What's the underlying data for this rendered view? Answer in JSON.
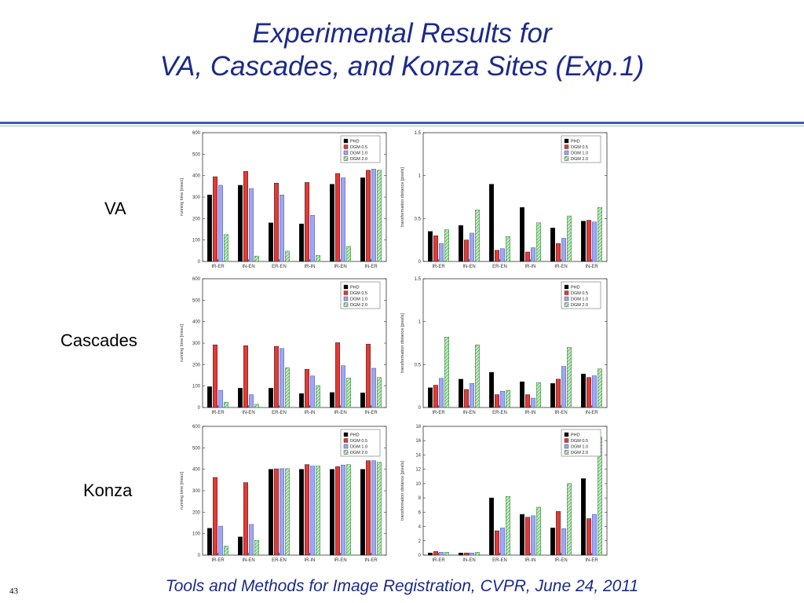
{
  "title": {
    "line1": "Experimental Results for",
    "line2": "VA, Cascades, and Konza Sites (Exp.1)"
  },
  "rows": [
    "VA",
    "Cascades",
    "Konza"
  ],
  "footer": "Tools and Methods for Image Registration, CVPR, June 24, 2011",
  "page_number": "43",
  "colors": {
    "PHD": "#000000",
    "DGM 0.5": "#e53935",
    "DGM 1.0": "#9fa8f0",
    "DGM 2.0": "#4caf50"
  },
  "chart_data": [
    {
      "row": "VA",
      "type": "bar",
      "ylabel": "running time [msec]",
      "categories": [
        "IR-ER",
        "IN-EN",
        "ER-EN",
        "IR-IN",
        "IR-EN",
        "IN-ER"
      ],
      "ylim": [
        0,
        600
      ],
      "yticks": [
        0,
        100,
        200,
        300,
        400,
        500,
        600
      ],
      "ytick_labels": [
        "0",
        "100",
        "200",
        "300",
        "400",
        "500",
        "600"
      ],
      "series": [
        {
          "name": "PHD",
          "values": [
            310,
            355,
            180,
            175,
            360,
            390
          ]
        },
        {
          "name": "DGM 0.5",
          "values": [
            395,
            420,
            365,
            368,
            410,
            425
          ]
        },
        {
          "name": "DGM 1.0",
          "values": [
            355,
            340,
            310,
            215,
            390,
            430
          ]
        },
        {
          "name": "DGM 2.0",
          "values": [
            125,
            25,
            48,
            28,
            70,
            425
          ]
        }
      ],
      "legend": "top-right"
    },
    {
      "row": "VA",
      "type": "bar",
      "ylabel": "transformation distance [pixels]",
      "categories": [
        "IR-ER",
        "IN-EN",
        "ER-EN",
        "IR-IN",
        "IR-EN",
        "IN-ER"
      ],
      "ylim": [
        0,
        1.5
      ],
      "yticks": [
        0,
        0.5,
        1,
        1.5
      ],
      "ytick_labels": [
        "0",
        "0.5",
        "1",
        "1.5"
      ],
      "series": [
        {
          "name": "PHD",
          "values": [
            0.35,
            0.42,
            0.9,
            0.63,
            0.39,
            0.47
          ]
        },
        {
          "name": "DGM 0.5",
          "values": [
            0.3,
            0.25,
            0.13,
            0.11,
            0.21,
            0.48
          ]
        },
        {
          "name": "DGM 1.0",
          "values": [
            0.21,
            0.33,
            0.15,
            0.16,
            0.27,
            0.46
          ]
        },
        {
          "name": "DGM 2.0",
          "values": [
            0.37,
            0.6,
            0.29,
            0.45,
            0.53,
            0.63
          ]
        }
      ],
      "legend": "top-right"
    },
    {
      "row": "Cascades",
      "type": "bar",
      "ylabel": "running time [msec]",
      "categories": [
        "IR-ER",
        "IN-EN",
        "ER-EN",
        "IR-IN",
        "IR-EN",
        "IN-ER"
      ],
      "ylim": [
        0,
        600
      ],
      "yticks": [
        0,
        100,
        200,
        300,
        400,
        500,
        600
      ],
      "ytick_labels": [
        "0",
        "100",
        "200",
        "300",
        "400",
        "500",
        "600"
      ],
      "series": [
        {
          "name": "PHD",
          "values": [
            97,
            90,
            90,
            65,
            70,
            68
          ]
        },
        {
          "name": "DGM 0.5",
          "values": [
            292,
            288,
            285,
            178,
            302,
            295
          ]
        },
        {
          "name": "DGM 1.0",
          "values": [
            80,
            60,
            275,
            147,
            195,
            183
          ]
        },
        {
          "name": "DGM 2.0",
          "values": [
            25,
            15,
            185,
            102,
            137,
            140
          ]
        }
      ],
      "legend": "top-right"
    },
    {
      "row": "Cascades",
      "type": "bar",
      "ylabel": "transformation distance [pixels]",
      "categories": [
        "IR-ER",
        "IN-EN",
        "ER-EN",
        "IR-IN",
        "IR-EN",
        "IN-ER"
      ],
      "ylim": [
        0,
        1.5
      ],
      "yticks": [
        0,
        0.5,
        1,
        1.5
      ],
      "ytick_labels": [
        "0",
        "0.5",
        "1",
        "1.5"
      ],
      "series": [
        {
          "name": "PHD",
          "values": [
            0.23,
            0.33,
            0.41,
            0.3,
            0.28,
            0.39
          ]
        },
        {
          "name": "DGM 0.5",
          "values": [
            0.26,
            0.21,
            0.15,
            0.15,
            0.33,
            0.35
          ]
        },
        {
          "name": "DGM 1.0",
          "values": [
            0.34,
            0.28,
            0.19,
            0.11,
            0.48,
            0.37
          ]
        },
        {
          "name": "DGM 2.0",
          "values": [
            0.82,
            0.73,
            0.2,
            0.29,
            0.7,
            0.45
          ]
        }
      ],
      "legend": "top-right"
    },
    {
      "row": "Konza",
      "type": "bar",
      "ylabel": "running time [msec]",
      "categories": [
        "IR-ER",
        "IN-EN",
        "ER-EN",
        "IR-IN",
        "IR-EN",
        "IN-ER"
      ],
      "ylim": [
        0,
        600
      ],
      "yticks": [
        0,
        100,
        200,
        300,
        400,
        500,
        600
      ],
      "ytick_labels": [
        "0",
        "100",
        "200",
        "300",
        "400",
        "500",
        "600"
      ],
      "series": [
        {
          "name": "PHD",
          "values": [
            125,
            85,
            400,
            400,
            400,
            400
          ]
        },
        {
          "name": "DGM 0.5",
          "values": [
            362,
            338,
            402,
            422,
            412,
            440
          ]
        },
        {
          "name": "DGM 1.0",
          "values": [
            135,
            143,
            403,
            415,
            420,
            440
          ]
        },
        {
          "name": "DGM 2.0",
          "values": [
            42,
            68,
            403,
            415,
            422,
            433
          ]
        }
      ],
      "legend": "top-right"
    },
    {
      "row": "Konza",
      "type": "bar",
      "ylabel": "transformation distance [pixels]",
      "categories": [
        "IR-ER",
        "IN-EN",
        "ER-EN",
        "IR-IN",
        "IR-EN",
        "IN-ER"
      ],
      "ylim": [
        0,
        18
      ],
      "yticks": [
        0,
        2,
        4,
        6,
        8,
        10,
        12,
        14,
        16,
        18
      ],
      "ytick_labels": [
        "0",
        "2",
        "4",
        "6",
        "8",
        "10",
        "12",
        "14",
        "16",
        "18"
      ],
      "series": [
        {
          "name": "PHD",
          "values": [
            0.3,
            0.3,
            8.0,
            5.7,
            3.8,
            10.7
          ]
        },
        {
          "name": "DGM 0.5",
          "values": [
            0.5,
            0.3,
            3.4,
            5.3,
            6.1,
            5.1
          ]
        },
        {
          "name": "DGM 1.0",
          "values": [
            0.4,
            0.3,
            3.8,
            5.5,
            3.7,
            5.7
          ]
        },
        {
          "name": "DGM 2.0",
          "values": [
            0.4,
            0.4,
            8.2,
            6.7,
            10.0,
            16.5
          ]
        }
      ],
      "legend": "top-right"
    }
  ]
}
